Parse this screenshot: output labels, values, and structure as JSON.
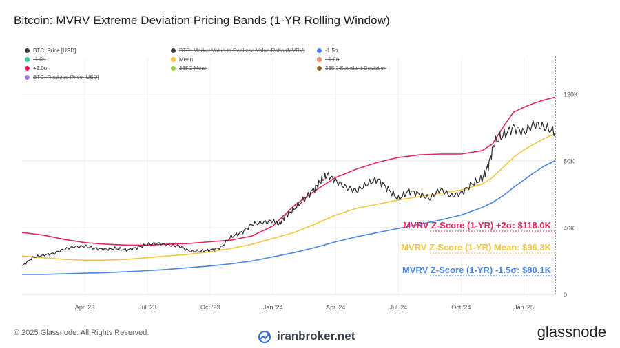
{
  "title": "Bitcoin: MVRV Extreme Deviation Pricing Bands (1-YR Rolling Window)",
  "legend": [
    {
      "label": "BTC: Price [USD]",
      "color": "#3a3a3a",
      "active": true
    },
    {
      "label": "BTC: Market Value to Realized Value Ratio (MVRV)",
      "color": "#3a3a3a",
      "active": false
    },
    {
      "label": "-1.5σ",
      "color": "#4a86e8",
      "active": true
    },
    {
      "label": "-1.0σ",
      "color": "#3ec7a0",
      "active": false
    },
    {
      "label": "Mean",
      "color": "#f4c542",
      "active": true
    },
    {
      "label": "+1.0σ",
      "color": "#f08a5d",
      "active": false
    },
    {
      "label": "+2.0σ",
      "color": "#e8255c",
      "active": true
    },
    {
      "label": "365D Mean",
      "color": "#a5c94b",
      "active": false
    },
    {
      "label": "365D Standard Deviation",
      "color": "#9a6b2d",
      "active": false
    },
    {
      "label": "BTC: Realized Price [USD]",
      "color": "#9c7de0",
      "active": false
    }
  ],
  "annotations": {
    "plus2": {
      "text": "MVRV Z-Score (1-YR) +2σ: $118.0K",
      "color": "#e8255c"
    },
    "mean": {
      "text": "MVRV Z-Score (1-YR) Mean: $96.3K",
      "color": "#f4c542"
    },
    "minus15": {
      "text": "MVRV Z-Score (1-YR) -1.5σ: $80.1K",
      "color": "#4a86e8"
    }
  },
  "footer": {
    "copyright": "© 2025 Glassnode. All Rights Reserved.",
    "watermark": "iranbroker.net",
    "logo": "glassnode"
  },
  "chart_data": {
    "type": "line",
    "title": "Bitcoin: MVRV Extreme Deviation Pricing Bands (1-YR Rolling Window)",
    "x_ticks": [
      "Apr '23",
      "Jul '23",
      "Oct '23",
      "Jan '24",
      "Apr '24",
      "Jul '24",
      "Oct '24",
      "Jan '25"
    ],
    "x_tick_pos": [
      3,
      6,
      9,
      12,
      15,
      18,
      21,
      24
    ],
    "y_ticks": [
      "0",
      "40K",
      "80K",
      "120K"
    ],
    "y_tick_values": [
      0,
      40000,
      80000,
      120000
    ],
    "xlim": [
      0,
      25.5
    ],
    "ylim": [
      0,
      140000
    ],
    "grid": true,
    "series": [
      {
        "name": "BTC: Price [USD]",
        "color": "#2e2e2e",
        "width": 1.2,
        "x": [
          0,
          0.5,
          1,
          1.5,
          2,
          2.5,
          3,
          3.5,
          4,
          4.5,
          5,
          5.5,
          6,
          6.5,
          7,
          7.5,
          8,
          8.5,
          9,
          9.5,
          10,
          10.5,
          11,
          11.5,
          12,
          12.3,
          12.6,
          13,
          13.5,
          14,
          14.3,
          14.6,
          15,
          15.5,
          16,
          16.5,
          17,
          17.5,
          18,
          18.5,
          19,
          19.5,
          20,
          20.5,
          21,
          21.5,
          22,
          22.3,
          22.6,
          23,
          23.5,
          24,
          24.5,
          25,
          25.5
        ],
        "y": [
          17000,
          22000,
          23500,
          24500,
          27000,
          28500,
          28800,
          27500,
          27000,
          27500,
          26500,
          28000,
          30000,
          30500,
          29500,
          29000,
          26000,
          25800,
          26500,
          28000,
          34500,
          37000,
          42000,
          43000,
          44000,
          42000,
          47000,
          51000,
          57000,
          63500,
          68000,
          71500,
          68000,
          64000,
          62000,
          66000,
          69000,
          63000,
          57000,
          62000,
          60000,
          57500,
          63000,
          59000,
          60500,
          66000,
          69000,
          77000,
          91000,
          95000,
          100000,
          97000,
          102000,
          100000,
          97000
        ]
      },
      {
        "name": "+2.0σ",
        "color": "#e8255c",
        "width": 1.6,
        "x": [
          0,
          1,
          2,
          3,
          4,
          5,
          6,
          7,
          8,
          9,
          10,
          11,
          12,
          13,
          14,
          15,
          16,
          17,
          18,
          19,
          20,
          21,
          22,
          22.5,
          23,
          23.5,
          24,
          24.5,
          25,
          25.5
        ],
        "y": [
          37000,
          35500,
          33000,
          31000,
          30000,
          29500,
          29500,
          30000,
          30500,
          31500,
          32500,
          35000,
          41000,
          53000,
          62000,
          70000,
          75000,
          79000,
          82000,
          83500,
          84000,
          84000,
          86000,
          90000,
          100000,
          109000,
          112000,
          114500,
          116500,
          118000
        ]
      },
      {
        "name": "Mean",
        "color": "#f4c542",
        "width": 1.6,
        "x": [
          0,
          1,
          2,
          3,
          4,
          5,
          6,
          7,
          8,
          9,
          10,
          11,
          12,
          13,
          14,
          15,
          16,
          17,
          18,
          19,
          20,
          21,
          22,
          22.5,
          23,
          23.5,
          24,
          24.5,
          25,
          25.5
        ],
        "y": [
          23000,
          22000,
          21000,
          20500,
          20500,
          21000,
          22000,
          23000,
          24000,
          25500,
          27500,
          30000,
          33500,
          37000,
          42000,
          47500,
          51500,
          54000,
          56500,
          58500,
          60500,
          62500,
          66000,
          70000,
          76000,
          82000,
          86500,
          90000,
          93500,
          96300
        ]
      },
      {
        "name": "-1.5σ",
        "color": "#4a86e8",
        "width": 1.6,
        "x": [
          0,
          1,
          2,
          3,
          4,
          5,
          6,
          7,
          8,
          9,
          10,
          11,
          12,
          13,
          14,
          15,
          16,
          17,
          18,
          19,
          20,
          21,
          22,
          22.5,
          23,
          23.5,
          24,
          24.5,
          25,
          25.5
        ],
        "y": [
          12000,
          12000,
          12300,
          12700,
          13000,
          13600,
          14200,
          15000,
          16000,
          17000,
          18300,
          20000,
          22500,
          25000,
          28000,
          31500,
          34500,
          37000,
          39500,
          42000,
          44500,
          47500,
          52000,
          55000,
          59000,
          64000,
          68500,
          73000,
          77000,
          80100
        ]
      }
    ]
  }
}
